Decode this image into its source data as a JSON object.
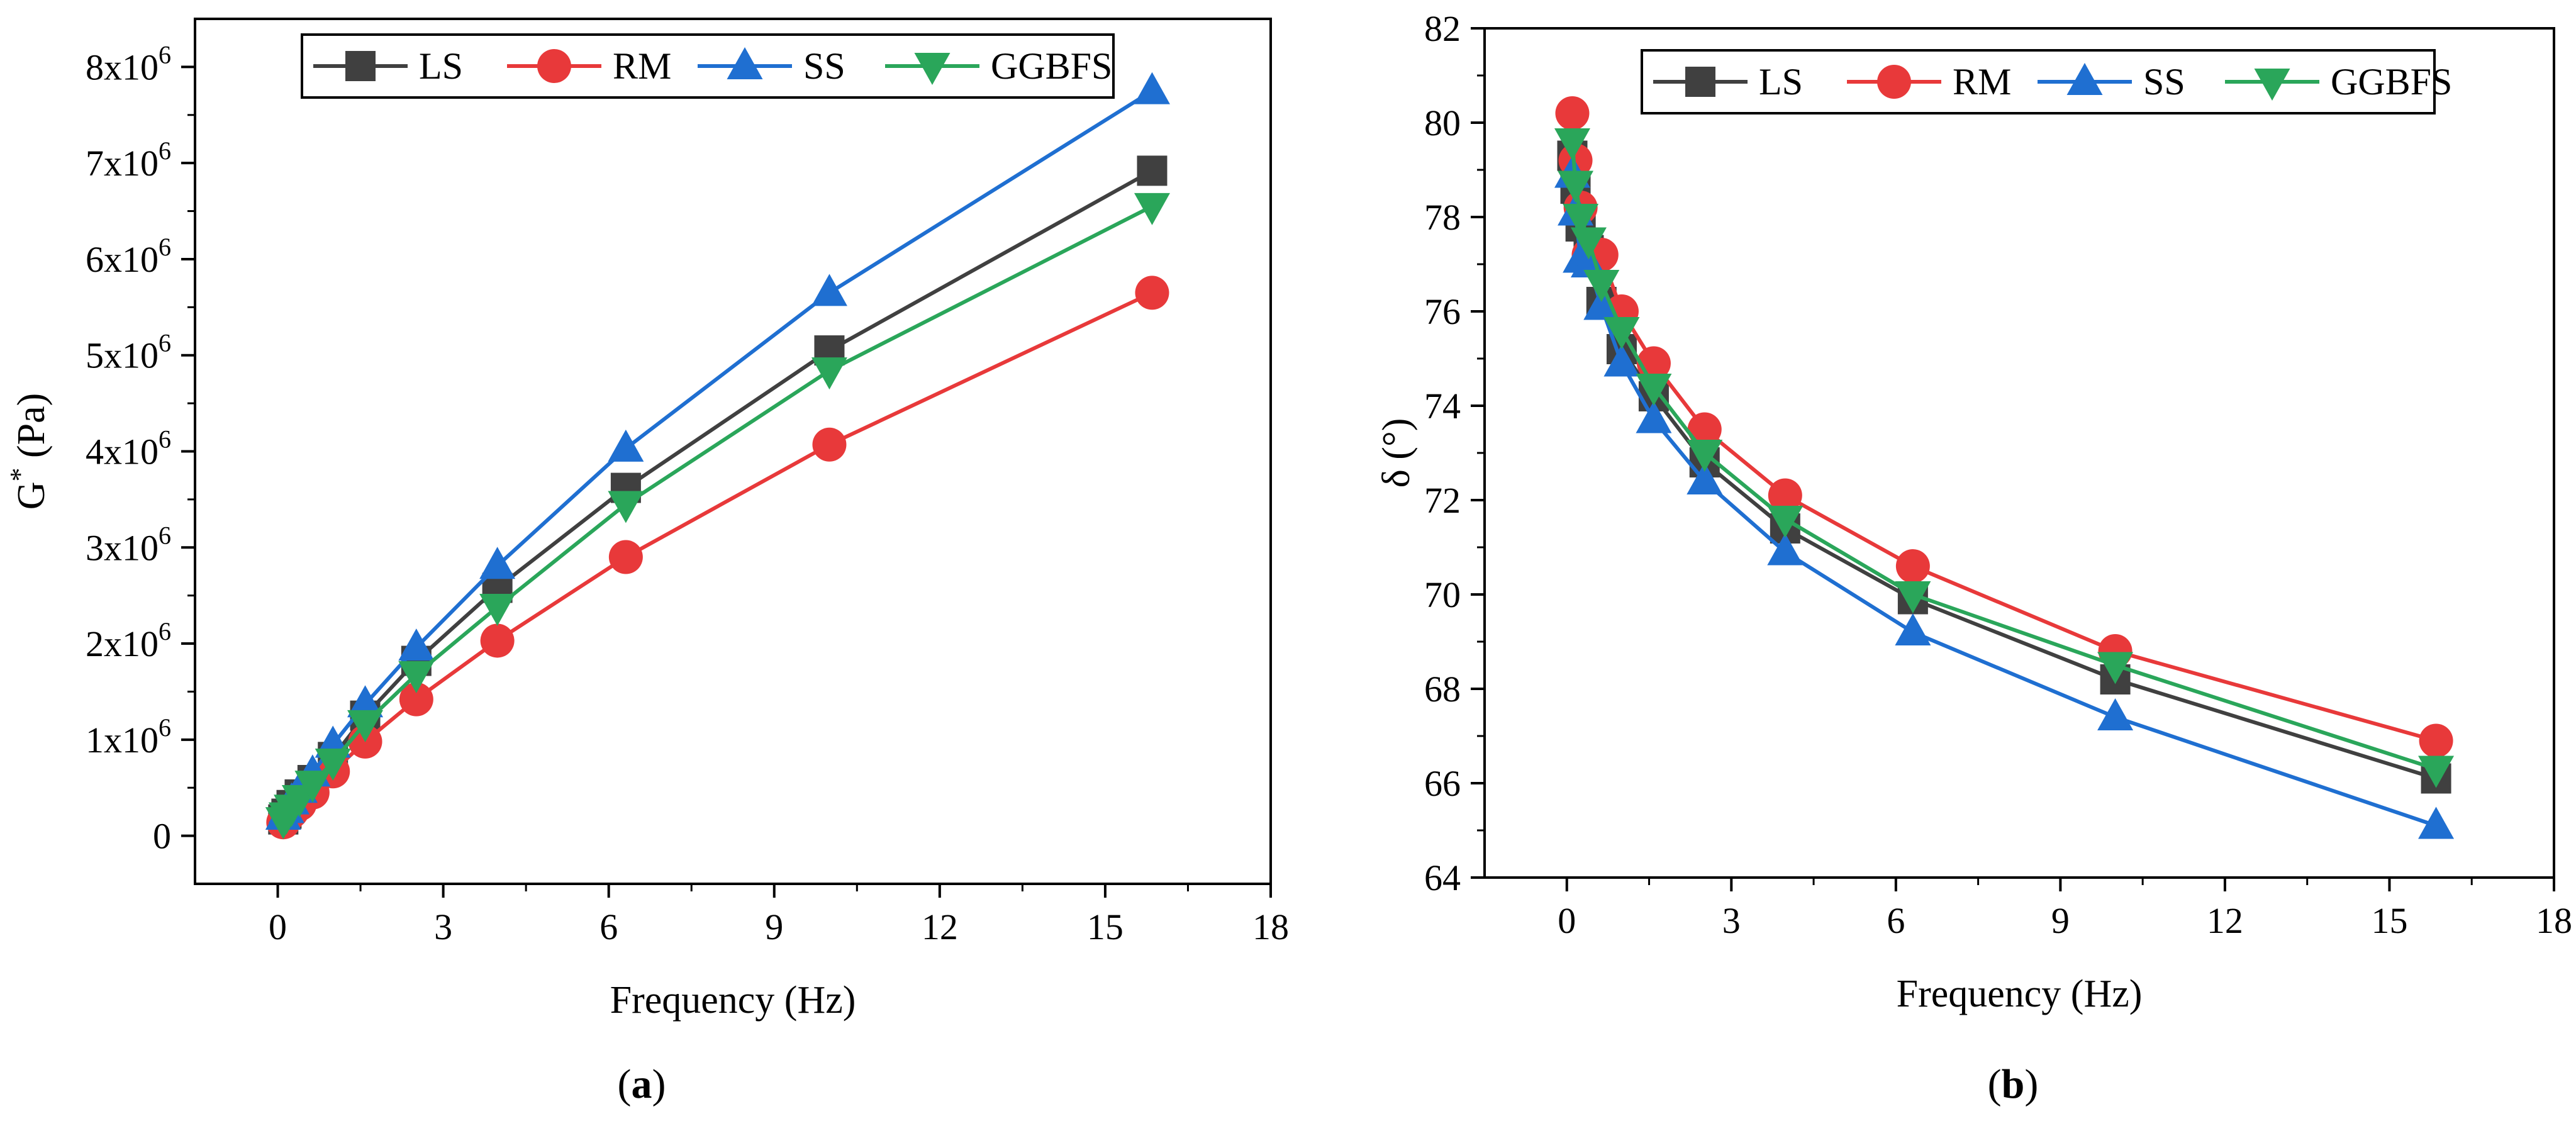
{
  "chart_data": [
    {
      "type": "line",
      "panel_label": "a",
      "xlabel": "Frequency (Hz)",
      "ylabel_base": "G",
      "ylabel_sup": "*",
      "ylabel_unit": " (Pa)",
      "xlim": [
        -1.5,
        18
      ],
      "ylim": [
        -500000,
        8500000
      ],
      "xticks": [
        0,
        3,
        6,
        9,
        12,
        15,
        18
      ],
      "yticks": [
        0,
        1000000,
        2000000,
        3000000,
        4000000,
        5000000,
        6000000,
        7000000,
        8000000
      ],
      "ytick_labels": [
        {
          "value": 0,
          "mantissa": "0",
          "base": "",
          "exp": ""
        },
        {
          "value": 1000000,
          "mantissa": "1x10",
          "base": "",
          "exp": "6"
        },
        {
          "value": 2000000,
          "mantissa": "2x10",
          "base": "",
          "exp": "6"
        },
        {
          "value": 3000000,
          "mantissa": "3x10",
          "base": "",
          "exp": "6"
        },
        {
          "value": 4000000,
          "mantissa": "4x10",
          "base": "",
          "exp": "6"
        },
        {
          "value": 5000000,
          "mantissa": "5x10",
          "base": "",
          "exp": "6"
        },
        {
          "value": 6000000,
          "mantissa": "6x10",
          "base": "",
          "exp": "6"
        },
        {
          "value": 7000000,
          "mantissa": "7x10",
          "base": "",
          "exp": "6"
        },
        {
          "value": 8000000,
          "mantissa": "8x10",
          "base": "",
          "exp": "6"
        }
      ],
      "legend_position": "top",
      "x": [
        0.1,
        0.158,
        0.251,
        0.398,
        0.631,
        1.0,
        1.585,
        2.512,
        3.981,
        6.31,
        10.0,
        15.85
      ],
      "series": [
        {
          "name": "LS",
          "color": "#404040",
          "marker": "square",
          "values": [
            170000,
            230000,
            320000,
            430000,
            580000,
            820000,
            1250000,
            1820000,
            2580000,
            3620000,
            5050000,
            6920000
          ]
        },
        {
          "name": "RM",
          "color": "#e8393a",
          "marker": "circle",
          "values": [
            140000,
            190000,
            250000,
            330000,
            450000,
            670000,
            980000,
            1420000,
            2030000,
            2900000,
            4070000,
            5650000
          ]
        },
        {
          "name": "SS",
          "color": "#1f6fd1",
          "marker": "triangle-up",
          "values": [
            200000,
            270000,
            360000,
            480000,
            650000,
            950000,
            1370000,
            1960000,
            2810000,
            4030000,
            5650000,
            7750000
          ]
        },
        {
          "name": "GGBFS",
          "color": "#2aa65a",
          "marker": "triangle-down",
          "values": [
            160000,
            210000,
            290000,
            390000,
            540000,
            770000,
            1170000,
            1680000,
            2380000,
            3450000,
            4840000,
            6550000
          ]
        }
      ]
    },
    {
      "type": "line",
      "panel_label": "b",
      "xlabel": "Frequency (Hz)",
      "ylabel_base": "δ",
      "ylabel_sup": "",
      "ylabel_unit": " (°)",
      "xlim": [
        -1.5,
        18
      ],
      "ylim": [
        64,
        82
      ],
      "xticks": [
        0,
        3,
        6,
        9,
        12,
        15,
        18
      ],
      "yticks": [
        64,
        66,
        68,
        70,
        72,
        74,
        76,
        78,
        80,
        82
      ],
      "ytick_labels": [
        {
          "value": 64,
          "mantissa": "64",
          "exp": ""
        },
        {
          "value": 66,
          "mantissa": "66",
          "exp": ""
        },
        {
          "value": 68,
          "mantissa": "68",
          "exp": ""
        },
        {
          "value": 70,
          "mantissa": "70",
          "exp": ""
        },
        {
          "value": 72,
          "mantissa": "72",
          "exp": ""
        },
        {
          "value": 74,
          "mantissa": "74",
          "exp": ""
        },
        {
          "value": 76,
          "mantissa": "76",
          "exp": ""
        },
        {
          "value": 78,
          "mantissa": "78",
          "exp": ""
        },
        {
          "value": 80,
          "mantissa": "80",
          "exp": ""
        },
        {
          "value": 82,
          "mantissa": "82",
          "exp": ""
        }
      ],
      "legend_position": "top",
      "x": [
        0.1,
        0.158,
        0.251,
        0.398,
        0.631,
        1.0,
        1.585,
        2.512,
        3.981,
        6.31,
        10.0,
        15.85
      ],
      "series": [
        {
          "name": "LS",
          "color": "#404040",
          "marker": "square",
          "values": [
            79.3,
            78.6,
            77.8,
            77.3,
            76.2,
            75.2,
            74.2,
            72.8,
            71.4,
            69.9,
            68.2,
            66.1
          ]
        },
        {
          "name": "RM",
          "color": "#e8393a",
          "marker": "circle",
          "values": [
            80.2,
            79.2,
            78.2,
            77.2,
            77.2,
            76.0,
            74.9,
            73.5,
            72.1,
            70.6,
            68.8,
            66.9
          ]
        },
        {
          "name": "SS",
          "color": "#1f6fd1",
          "marker": "triangle-up",
          "values": [
            78.9,
            78.1,
            77.1,
            77.0,
            76.1,
            74.9,
            73.7,
            72.4,
            70.9,
            69.2,
            67.4,
            65.1
          ]
        },
        {
          "name": "GGBFS",
          "color": "#2aa65a",
          "marker": "triangle-down",
          "values": [
            79.6,
            78.7,
            78.0,
            77.5,
            76.6,
            75.6,
            74.4,
            73.0,
            71.6,
            70.0,
            68.5,
            66.3
          ]
        }
      ]
    }
  ]
}
